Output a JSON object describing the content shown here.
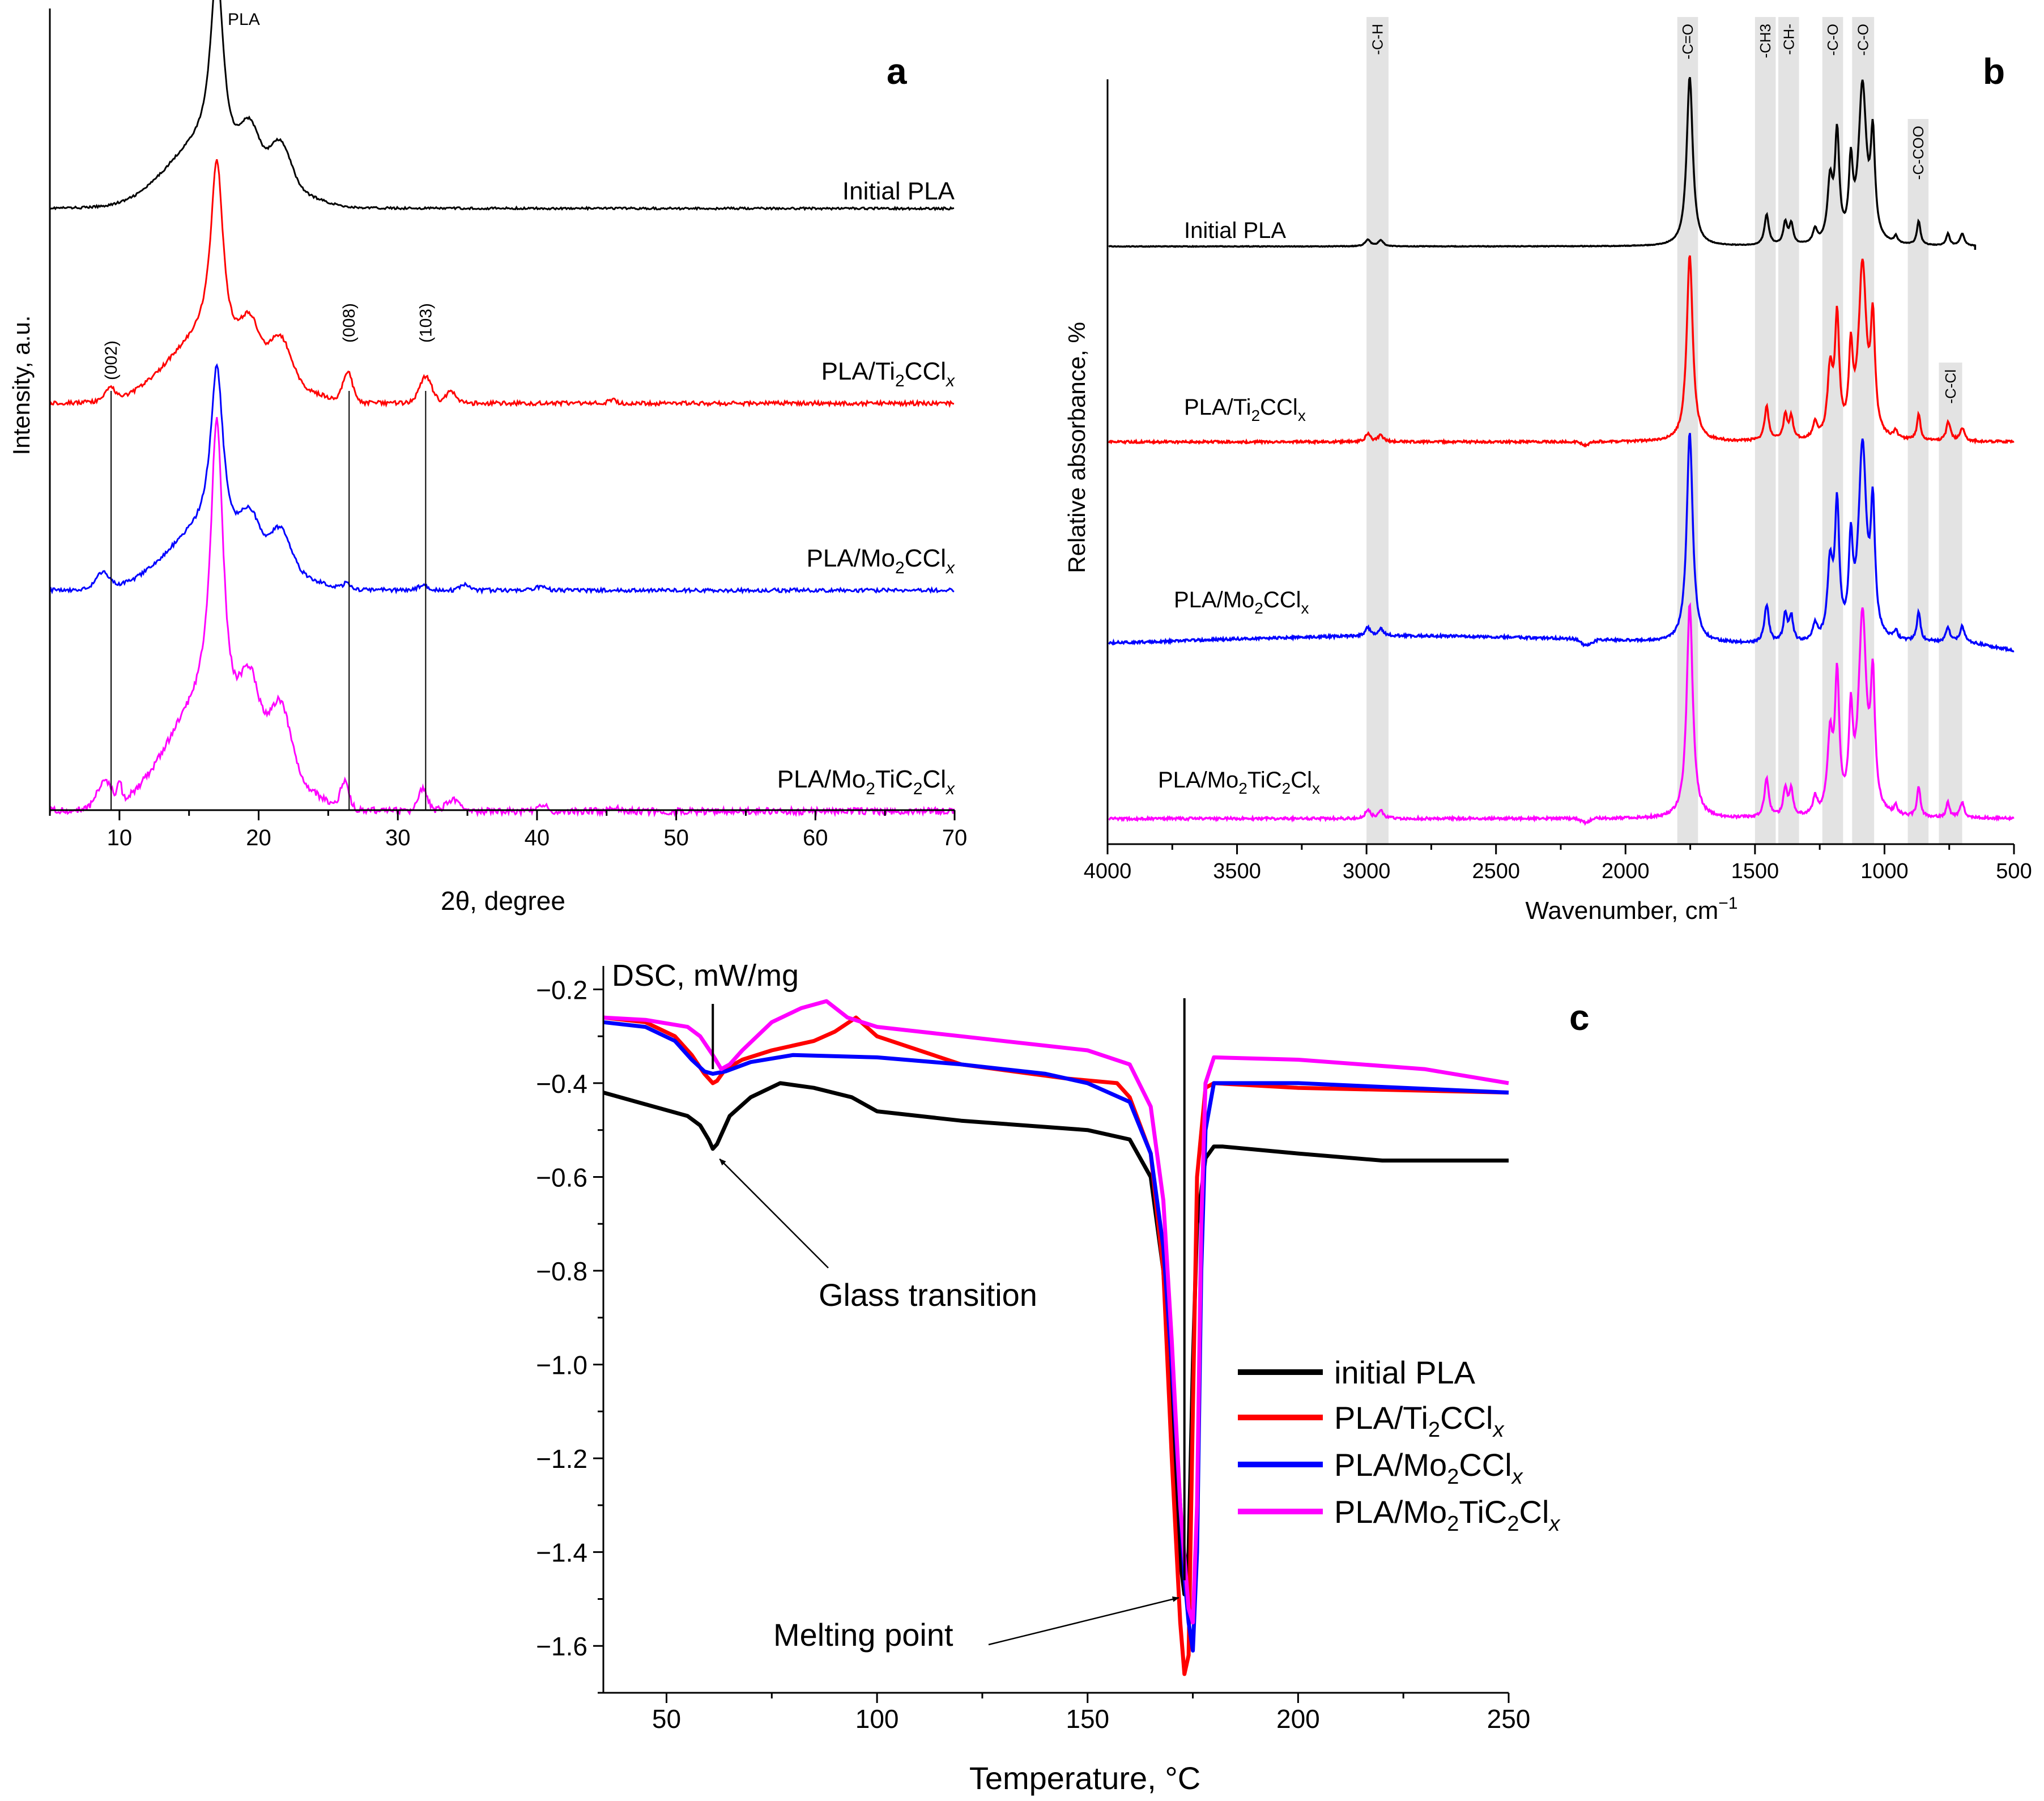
{
  "chart_data": [
    {
      "panel": "a",
      "type": "line",
      "ylabel": "Intensity, a.u.",
      "xlabel": "2θ, degree",
      "xlim": [
        5,
        70
      ],
      "xticks": [
        10,
        20,
        30,
        40,
        50,
        60,
        70
      ],
      "y_tick_labels": false,
      "grid": false,
      "peak_label": "PLA",
      "reflections": [
        {
          "label": "(002)",
          "x": 9.4
        },
        {
          "label": "(008)",
          "x": 26.5
        },
        {
          "label": "(103)",
          "x": 32.0
        }
      ],
      "series": [
        {
          "name": "Initial PLA",
          "color": "#000000"
        },
        {
          "name_main": "PLA/Ti",
          "sub1": "2",
          "name_mid": "CCl",
          "sub2": "x",
          "color": "#ff0000"
        },
        {
          "name_main": "PLA/Mo",
          "sub1": "2",
          "name_mid": "CCl",
          "sub2": "x",
          "color": "#0000ff"
        },
        {
          "name_main": "PLA/Mo",
          "sub1": "2",
          "name_mid": "TiC",
          "sub2": "2",
          "name_end": "Cl",
          "sub3": "x",
          "color": "#ff00ff"
        }
      ]
    },
    {
      "panel": "b",
      "type": "line",
      "ylabel": "Relative absorbance, %",
      "xlabel": "Wavenumber, cm",
      "xlabel_sup": "−1",
      "xlim": [
        4000,
        500
      ],
      "xticks": [
        4000,
        3500,
        3000,
        2500,
        2000,
        1500,
        1000,
        500
      ],
      "y_tick_labels": false,
      "grid": false,
      "bands": [
        {
          "label": "-C-H",
          "from": 3000,
          "to": 2915
        },
        {
          "label": "-C=O",
          "from": 1800,
          "to": 1720
        },
        {
          "label": "-CH3",
          "from": 1500,
          "to": 1420
        },
        {
          "label": "-CH-",
          "from": 1410,
          "to": 1330
        },
        {
          "label": "-C-O",
          "from": 1240,
          "to": 1160
        },
        {
          "label": "-C-O",
          "from": 1125,
          "to": 1040
        },
        {
          "label": "-C-COO",
          "from": 910,
          "to": 830
        },
        {
          "label": "-C-Cl",
          "from": 790,
          "to": 700
        }
      ],
      "series": [
        {
          "name": "Initial PLA",
          "color": "#000000"
        },
        {
          "name_main": "PLA/Ti",
          "sub1": "2",
          "name_mid": "CCl",
          "sub2": "x",
          "color": "#ff0000"
        },
        {
          "name_main": "PLA/Mo",
          "sub1": "2",
          "name_mid": "CCl",
          "sub2": "x",
          "color": "#0000ff"
        },
        {
          "name_main": "PLA/Mo",
          "sub1": "2",
          "name_mid": "TiC",
          "sub2": "2",
          "name_end": "Cl",
          "sub3": "x",
          "color": "#ff00ff"
        }
      ]
    },
    {
      "panel": "c",
      "type": "line",
      "ylabel": "DSC, mW/mg",
      "xlabel": "Temperature, °C",
      "xlim": [
        35,
        250
      ],
      "ylim": [
        -1.7,
        -0.15
      ],
      "xticks": [
        50,
        100,
        150,
        200,
        250
      ],
      "yticks": [
        -0.2,
        -0.4,
        -0.6,
        -0.8,
        -1.0,
        -1.2,
        -1.4,
        -1.6
      ],
      "ytick_labels": [
        "−0.2",
        "−0.4",
        "−0.6",
        "−0.8",
        "−1.0",
        "−1.2",
        "−1.4",
        "−1.6"
      ],
      "grid": false,
      "legend_position": "right",
      "markers": [
        {
          "x": 61,
          "label": "Glass transition",
          "target_y": -0.54
        },
        {
          "x": 173,
          "label": "Melting point",
          "target_y": -1.49
        }
      ],
      "series": [
        {
          "name": "initial PLA",
          "color": "#000000",
          "x": [
            35,
            45,
            55,
            58,
            60,
            61,
            62,
            65,
            70,
            77,
            85,
            94,
            100,
            120,
            150,
            160,
            165,
            168,
            170,
            172,
            173,
            174,
            175,
            176,
            178,
            180,
            182,
            200,
            220,
            250
          ],
          "y": [
            -0.42,
            -0.445,
            -0.47,
            -0.49,
            -0.52,
            -0.54,
            -0.53,
            -0.47,
            -0.43,
            -0.4,
            -0.41,
            -0.43,
            -0.46,
            -0.48,
            -0.5,
            -0.52,
            -0.6,
            -0.8,
            -1.1,
            -1.42,
            -1.49,
            -1.4,
            -1.0,
            -0.7,
            -0.56,
            -0.535,
            -0.535,
            -0.55,
            -0.565,
            -0.565
          ]
        },
        {
          "name": "PLA/Ti2CClx",
          "color": "#ff0000",
          "x": [
            35,
            45,
            52,
            56,
            59,
            61,
            62,
            64,
            68,
            75,
            85,
            90,
            95,
            100,
            120,
            145,
            157,
            160,
            165,
            168,
            170,
            172,
            173,
            174,
            175,
            176,
            178,
            180,
            200,
            250
          ],
          "y": [
            -0.26,
            -0.27,
            -0.3,
            -0.34,
            -0.38,
            -0.4,
            -0.395,
            -0.37,
            -0.35,
            -0.33,
            -0.31,
            -0.29,
            -0.26,
            -0.3,
            -0.36,
            -0.39,
            -0.4,
            -0.43,
            -0.55,
            -0.8,
            -1.2,
            -1.55,
            -1.66,
            -1.62,
            -1.1,
            -0.6,
            -0.41,
            -0.4,
            -0.41,
            -0.42
          ]
        },
        {
          "name": "PLA/Mo2CClx",
          "color": "#0000ff",
          "x": [
            35,
            45,
            52,
            56,
            59,
            61,
            64,
            70,
            80,
            100,
            120,
            140,
            150,
            160,
            165,
            168,
            170,
            172,
            173,
            174,
            175,
            176,
            177,
            178,
            180,
            200,
            250
          ],
          "y": [
            -0.27,
            -0.28,
            -0.31,
            -0.35,
            -0.375,
            -0.38,
            -0.375,
            -0.355,
            -0.34,
            -0.345,
            -0.36,
            -0.38,
            -0.4,
            -0.44,
            -0.55,
            -0.75,
            -1.0,
            -1.3,
            -1.45,
            -1.55,
            -1.61,
            -1.4,
            -0.8,
            -0.5,
            -0.4,
            -0.4,
            -0.42
          ]
        },
        {
          "name": "PLA/Mo2TiC2Clx",
          "color": "#ff00ff",
          "x": [
            35,
            45,
            55,
            58,
            61,
            63,
            65,
            68,
            75,
            82,
            88,
            93,
            100,
            120,
            150,
            160,
            165,
            168,
            170,
            172,
            174,
            175,
            176,
            177,
            178,
            180,
            200,
            230,
            250
          ],
          "y": [
            -0.26,
            -0.265,
            -0.28,
            -0.3,
            -0.34,
            -0.37,
            -0.36,
            -0.33,
            -0.27,
            -0.24,
            -0.225,
            -0.26,
            -0.28,
            -0.3,
            -0.33,
            -0.36,
            -0.45,
            -0.65,
            -0.95,
            -1.3,
            -1.52,
            -1.55,
            -1.3,
            -0.7,
            -0.4,
            -0.345,
            -0.35,
            -0.37,
            -0.4
          ]
        }
      ],
      "legend": [
        {
          "main": "initial PLA",
          "color": "#000000"
        },
        {
          "main": "PLA/Ti",
          "sub1": "2",
          "mid": "CCl",
          "sub2": "x",
          "color": "#ff0000"
        },
        {
          "main": "PLA/Mo",
          "sub1": "2",
          "mid": "CCl",
          "sub2": "x",
          "color": "#0000ff"
        },
        {
          "main": "PLA/Mo",
          "sub1": "2",
          "mid": "TiC",
          "sub2": "2",
          "end": "Cl",
          "sub3": "x",
          "color": "#ff00ff"
        }
      ]
    }
  ],
  "panel_labels": {
    "a": "a",
    "b": "b",
    "c": "c"
  }
}
